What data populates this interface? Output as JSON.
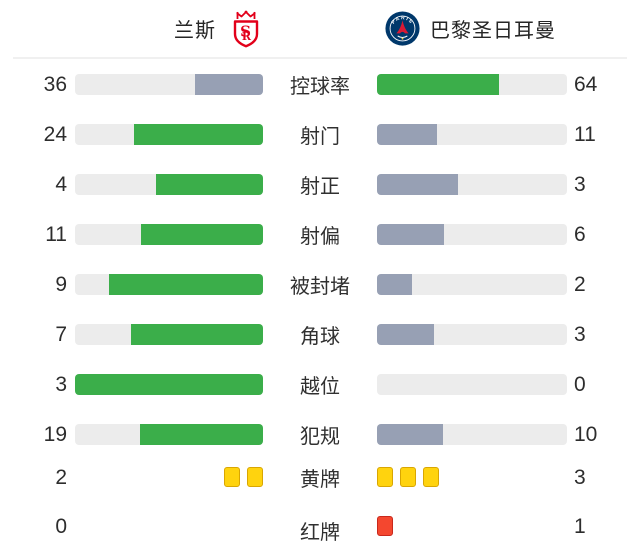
{
  "header": {
    "home_name": "兰斯",
    "away_name": "巴黎圣日耳曼"
  },
  "colors": {
    "leader_green": "#3bae4a",
    "trailer_gray": "#97a0b4",
    "track_gray": "#ececec",
    "yellow_card": "#ffd30e",
    "red_card": "#f4472f"
  },
  "rows": [
    {
      "key": "possession",
      "label": "控球率",
      "home": 36,
      "away": 64,
      "display": "bar"
    },
    {
      "key": "shots",
      "label": "射门",
      "home": 24,
      "away": 11,
      "display": "bar"
    },
    {
      "key": "shots-on-target",
      "label": "射正",
      "home": 4,
      "away": 3,
      "display": "bar"
    },
    {
      "key": "shots-off-target",
      "label": "射偏",
      "home": 11,
      "away": 6,
      "display": "bar"
    },
    {
      "key": "blocked-shots",
      "label": "被封堵",
      "home": 9,
      "away": 2,
      "display": "bar"
    },
    {
      "key": "corners",
      "label": "角球",
      "home": 7,
      "away": 3,
      "display": "bar"
    },
    {
      "key": "offsides",
      "label": "越位",
      "home": 3,
      "away": 0,
      "display": "bar"
    },
    {
      "key": "fouls",
      "label": "犯规",
      "home": 19,
      "away": 10,
      "display": "bar"
    },
    {
      "key": "yellow-cards",
      "label": "黄牌",
      "home": 2,
      "away": 3,
      "display": "cards",
      "card": "yellow"
    },
    {
      "key": "red-cards",
      "label": "红牌",
      "home": 0,
      "away": 1,
      "display": "cards",
      "card": "red"
    }
  ],
  "chart_data": {
    "type": "bar",
    "title": "",
    "categories": [
      "控球率",
      "射门",
      "射正",
      "射偏",
      "被封堵",
      "角球",
      "越位",
      "犯规",
      "黄牌",
      "红牌"
    ],
    "series": [
      {
        "name": "兰斯",
        "values": [
          36,
          24,
          4,
          11,
          9,
          7,
          3,
          19,
          2,
          0
        ]
      },
      {
        "name": "巴黎圣日耳曼",
        "values": [
          64,
          11,
          3,
          6,
          2,
          3,
          0,
          10,
          3,
          1
        ]
      }
    ],
    "layout": "horizontal paired comparison bars; stat label centered between bars; numeric values at outer edges; bar fill fraction = value / (home+away); leading side colored green, trailing side slate gray; card stats drawn as yellow/red card glyphs",
    "xlabel": "",
    "ylabel": "",
    "legend_position": "top (team names with crests)",
    "grid": false
  }
}
